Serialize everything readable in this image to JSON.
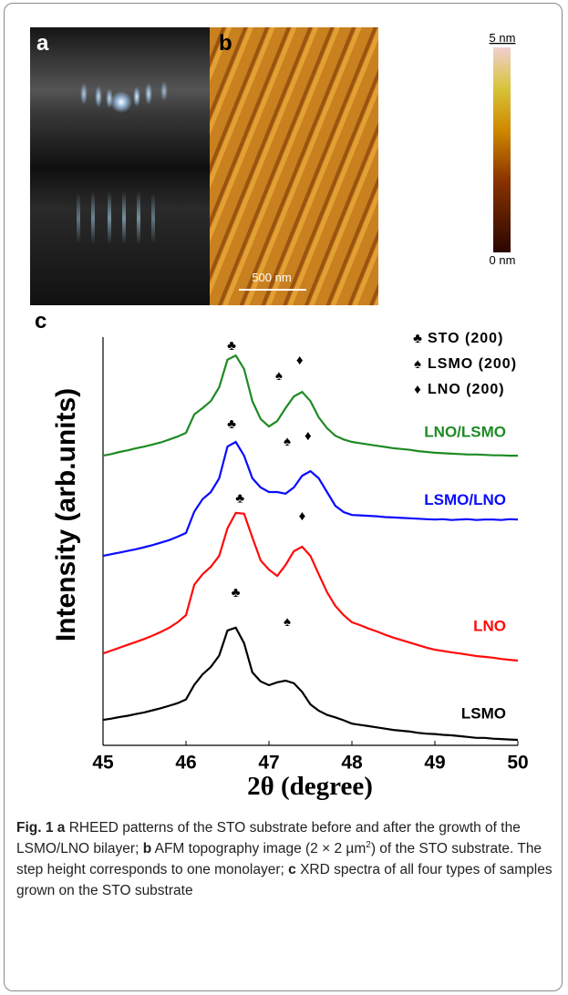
{
  "panel_labels": [
    "a",
    "b",
    "c"
  ],
  "afm": {
    "scale_bar": "500 nm",
    "colorbar": {
      "max": "5 nm",
      "min": "0 nm"
    }
  },
  "chart_data": {
    "type": "line",
    "xlabel": "2θ (degree)",
    "ylabel": "Intensity (arb.units)",
    "xlim": [
      45,
      50
    ],
    "ylim": [
      0,
      100
    ],
    "xticks": [
      45,
      46,
      47,
      48,
      49,
      50
    ],
    "x": [
      45,
      45.1,
      45.2,
      45.3,
      45.4,
      45.5,
      45.6,
      45.7,
      45.8,
      45.9,
      46,
      46.1,
      46.2,
      46.3,
      46.4,
      46.5,
      46.6,
      46.7,
      46.8,
      46.9,
      47,
      47.1,
      47.2,
      47.3,
      47.4,
      47.5,
      47.6,
      47.7,
      47.8,
      47.9,
      48,
      48.1,
      48.2,
      48.3,
      48.4,
      48.5,
      48.6,
      48.7,
      48.8,
      48.9,
      49,
      49.1,
      49.2,
      49.3,
      49.4,
      49.5,
      49.6,
      49.7,
      49.8,
      49.9,
      50
    ],
    "series": [
      {
        "name": "LNO/LSMO",
        "color": "#1f8a24",
        "values": [
          69.4,
          69.8,
          70.3,
          70.7,
          71.2,
          71.6,
          72.1,
          72.6,
          73.3,
          74.0,
          74.9,
          79.3,
          80.8,
          82.5,
          85.8,
          92.4,
          93.4,
          90.2,
          82.5,
          78.2,
          76.4,
          77.7,
          80.8,
          83.6,
          84.7,
          82.5,
          78.6,
          76.0,
          74.2,
          73.3,
          72.7,
          72.4,
          72.1,
          71.8,
          71.5,
          71.2,
          71.0,
          70.8,
          70.5,
          70.3,
          70.1,
          70.0,
          69.9,
          69.8,
          69.7,
          69.7,
          69.6,
          69.5,
          69.5,
          69.4,
          69.4
        ]
      },
      {
        "name": "LSMO/LNO",
        "color": "#0a0aff",
        "values": [
          45.4,
          45.8,
          46.2,
          46.6,
          47.0,
          47.5,
          48.0,
          48.6,
          49.2,
          50.0,
          50.9,
          56.0,
          59.0,
          60.7,
          64.0,
          71.6,
          72.7,
          69.4,
          64.0,
          61.8,
          60.7,
          60.7,
          60.3,
          61.8,
          64.6,
          65.7,
          64.0,
          60.7,
          57.4,
          55.9,
          55.2,
          55.1,
          55.0,
          54.9,
          54.7,
          54.6,
          54.5,
          54.4,
          54.3,
          54.2,
          54.1,
          54.2,
          54.0,
          54.1,
          54.2,
          54.0,
          54.1,
          54.1,
          54.0,
          54.2,
          54.1
        ]
      },
      {
        "name": "LNO",
        "color": "#ff0a0a",
        "values": [
          22.0,
          22.7,
          23.4,
          24.1,
          24.8,
          25.5,
          26.3,
          27.2,
          28.2,
          29.5,
          31.2,
          38.5,
          41.0,
          42.8,
          45.4,
          52.0,
          55.7,
          55.5,
          49.8,
          44.3,
          42.1,
          40.6,
          43.2,
          46.5,
          47.6,
          45.4,
          41.0,
          36.7,
          33.4,
          31.2,
          29.5,
          28.8,
          28.0,
          27.3,
          26.5,
          25.8,
          25.2,
          24.6,
          24.0,
          23.4,
          22.9,
          22.6,
          22.3,
          22.0,
          21.7,
          21.4,
          21.2,
          21.0,
          20.7,
          20.5,
          20.3
        ]
      },
      {
        "name": "LSMO",
        "color": "#000000",
        "values": [
          6.1,
          6.4,
          6.8,
          7.1,
          7.5,
          7.9,
          8.4,
          8.9,
          9.5,
          10.1,
          11.0,
          14.5,
          17.0,
          18.8,
          21.5,
          27.5,
          28.2,
          24.5,
          17.5,
          15.3,
          14.4,
          15.1,
          15.5,
          14.9,
          12.8,
          9.8,
          8.3,
          7.3,
          6.7,
          6.0,
          5.2,
          4.9,
          4.6,
          4.3,
          4.0,
          3.7,
          3.5,
          3.3,
          3.0,
          2.8,
          2.7,
          2.5,
          2.4,
          2.2,
          2.0,
          1.8,
          1.8,
          1.6,
          1.5,
          1.4,
          1.3
        ]
      }
    ],
    "peak_legend": [
      {
        "symbol": "♣",
        "label": "STO (200)"
      },
      {
        "symbol": "♠",
        "label": "LSMO (200)"
      },
      {
        "symbol": "♦",
        "label": "LNO (200)"
      }
    ],
    "annotations": [
      {
        "text": "♣",
        "x": 46.55,
        "y": 95.6
      },
      {
        "text": "♠",
        "x": 47.12,
        "y": 88.4
      },
      {
        "text": "♦",
        "x": 47.37,
        "y": 92.1
      },
      {
        "text": "♣",
        "x": 46.55,
        "y": 76.9
      },
      {
        "text": "♠",
        "x": 47.22,
        "y": 72.7
      },
      {
        "text": "♦",
        "x": 47.47,
        "y": 74.0
      },
      {
        "text": "♣",
        "x": 46.65,
        "y": 59.0
      },
      {
        "text": "♦",
        "x": 47.4,
        "y": 54.8
      },
      {
        "text": "♣",
        "x": 46.6,
        "y": 36.5
      },
      {
        "text": "♠",
        "x": 47.22,
        "y": 29.5
      }
    ]
  },
  "caption": [
    {
      "text": "Fig. 1 a",
      "bold": true
    },
    {
      "text": " RHEED patterns of the STO substrate before and after the growth of the LSMO/LNO bilayer; "
    },
    {
      "text": "b",
      "bold": true
    },
    {
      "text": " AFM topography image (2 × 2 µm"
    },
    {
      "text": "2",
      "sup": true
    },
    {
      "text": ") of the STO substrate. The step height corresponds to one monolayer; "
    },
    {
      "text": "c",
      "bold": true
    },
    {
      "text": " XRD spectra of all four types of samples grown on the STO substrate"
    }
  ]
}
